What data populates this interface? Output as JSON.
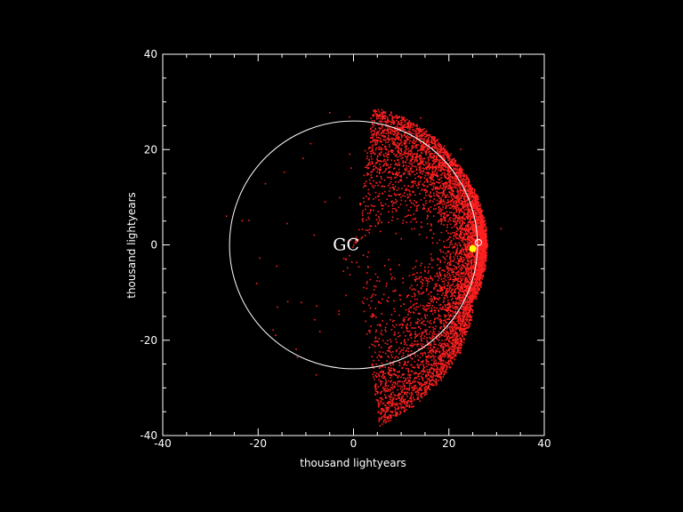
{
  "chart_data": {
    "type": "scatter",
    "title": "",
    "xlabel": "thousand lightyears",
    "ylabel": "thousand lightyears",
    "xlim": [
      -40,
      40
    ],
    "ylim": [
      -40,
      40
    ],
    "x_ticks": [
      "-40",
      "-20",
      "0",
      "20",
      "40"
    ],
    "y_ticks": [
      "-40",
      "-20",
      "0",
      "20",
      "40"
    ],
    "minor_tick_step": 5,
    "grid": false,
    "background": "#000000",
    "axis_color": "#ffffff",
    "point_color": "#ff2020",
    "point_distribution": "dense crescent on the +x side of the circle, densest near x 22 to 28 at y 0, thinning towards y +30 and y -37, with sparse points inside the circle",
    "circle": {
      "center": [
        0,
        0
      ],
      "radius": 26,
      "color": "#ffffff"
    },
    "markers": [
      {
        "name": "sun",
        "x": 25,
        "y": -0.8,
        "color": "#ffff00"
      },
      {
        "name": "open-circle",
        "x": 26.2,
        "y": 0.5,
        "color": "#ffffff"
      }
    ],
    "annotations": [
      {
        "text": "GC",
        "x": -1,
        "y": 0
      }
    ]
  }
}
